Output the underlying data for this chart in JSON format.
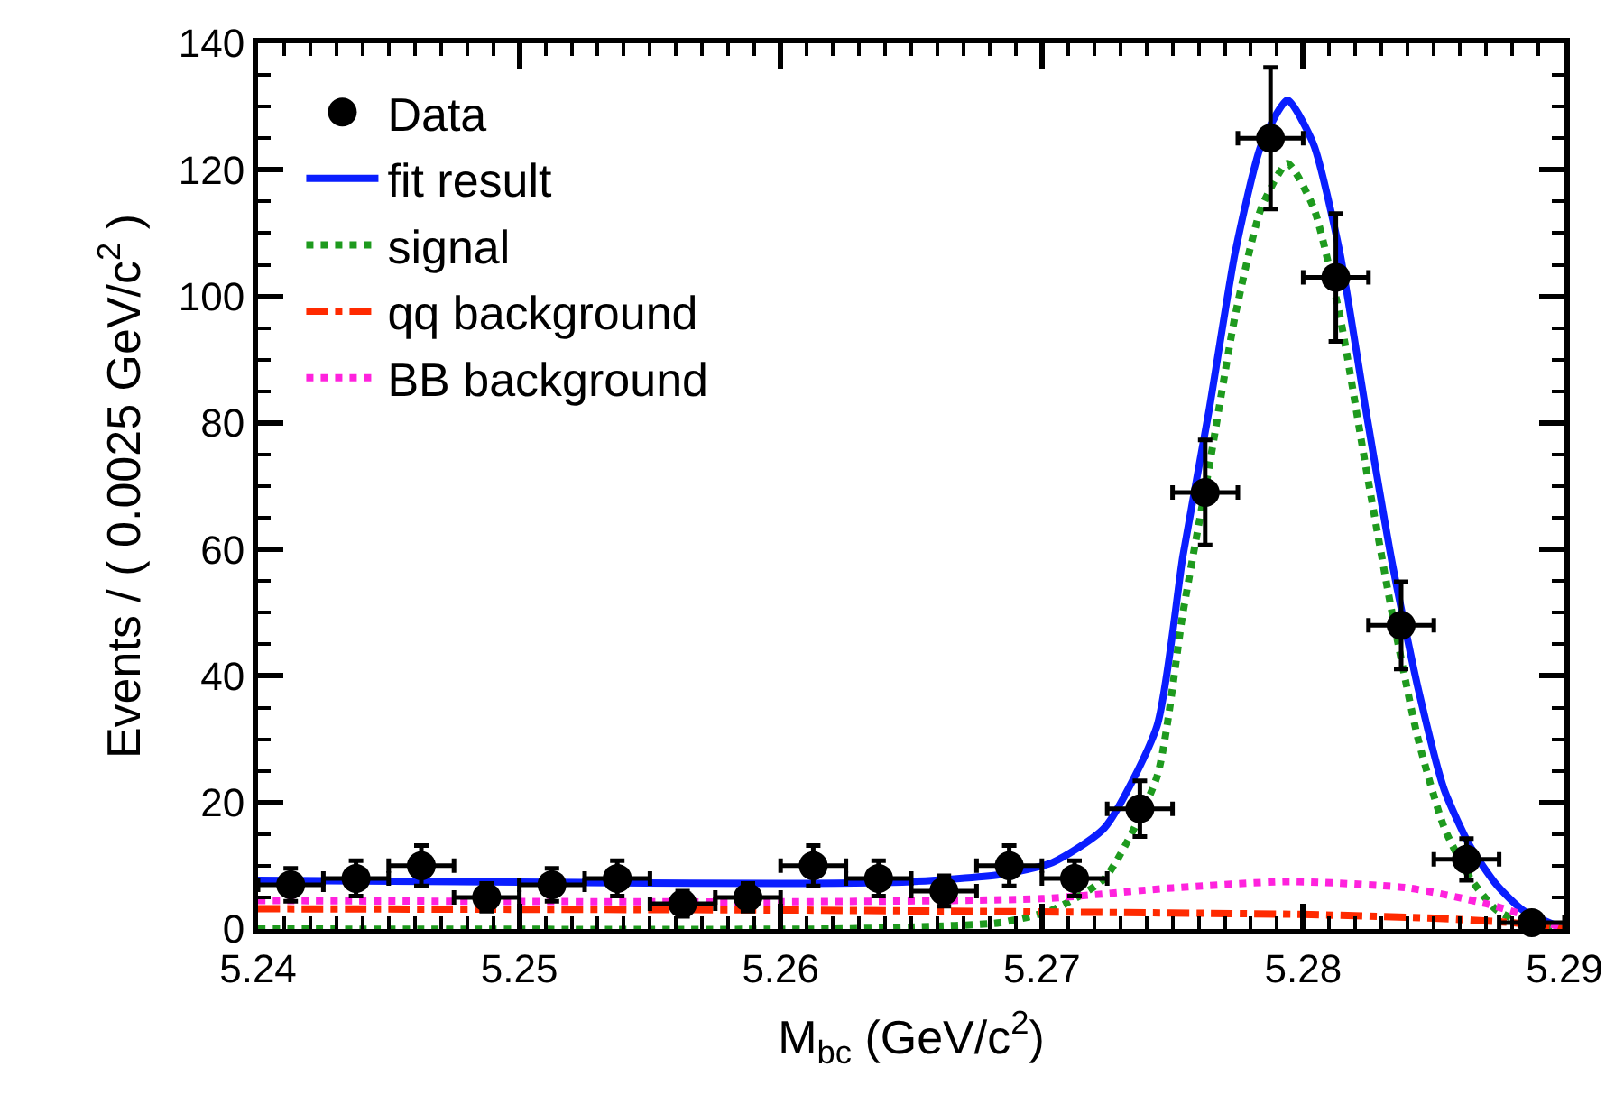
{
  "chart_data": {
    "type": "scatter",
    "xlabel": "M$_{bc}$ (GeV/c$^{2}$)",
    "ylabel": "Events / ( 0.0025 GeV/c$^{2}$ )",
    "xlim": [
      5.24,
      5.29
    ],
    "xticks": [
      5.24,
      5.25,
      5.26,
      5.27,
      5.28,
      5.29
    ],
    "ylim": [
      0,
      140
    ],
    "yticks": [
      0,
      20,
      40,
      60,
      80,
      100,
      120,
      140
    ],
    "legend": "top left",
    "series": [
      {
        "name": "Data",
        "marker": "circle",
        "color": "#000000",
        "x": [
          5.24125,
          5.24375,
          5.24625,
          5.24875,
          5.25125,
          5.25375,
          5.25625,
          5.25875,
          5.26125,
          5.26375,
          5.26625,
          5.26875,
          5.27125,
          5.27375,
          5.27625,
          5.27875,
          5.28125,
          5.28375,
          5.28625,
          5.28875
        ],
        "values": [
          7,
          8,
          10,
          5,
          7,
          8,
          4,
          5,
          10,
          8,
          6,
          10,
          8,
          19,
          69,
          125,
          103,
          48,
          11,
          1
        ],
        "errors": [
          2.6,
          2.8,
          3.2,
          2.2,
          2.6,
          2.8,
          2,
          2.2,
          3.2,
          2.8,
          2.4,
          3.2,
          2.8,
          4.4,
          8.3,
          11.2,
          10.1,
          6.9,
          3.3,
          null
        ],
        "xerrors": [
          0.00125,
          0.00125,
          0.00125,
          0.00125,
          0.00125,
          0.00125,
          0.00125,
          0.00125,
          0.00125,
          0.00125,
          0.00125,
          0.00125,
          0.00125,
          0.00125,
          0.00125,
          0.00125,
          0.00125,
          0.00125,
          0.00125,
          0.00125
        ]
      },
      {
        "name": "fit result",
        "type": "line",
        "line_style": "solid",
        "color": "#0a1eff",
        "x": [
          5.24,
          5.25,
          5.26,
          5.265,
          5.2684,
          5.2704,
          5.2724,
          5.2744,
          5.2754,
          5.2764,
          5.2774,
          5.2784,
          5.2794,
          5.2804,
          5.2814,
          5.2824,
          5.2834,
          5.2844,
          5.2854,
          5.2864,
          5.2874,
          5.2884,
          5.29
        ],
        "values": [
          7.7,
          7.4,
          7.2,
          7.5,
          8.6,
          10.5,
          16,
          32,
          59,
          82,
          107,
          124,
          131,
          124,
          107,
          82,
          58,
          38,
          22,
          13,
          7,
          3,
          0
        ]
      },
      {
        "name": "signal",
        "type": "line",
        "line_style": "dotted",
        "color": "#1e9a1e",
        "x": [
          5.24,
          5.262,
          5.265,
          5.2684,
          5.2704,
          5.2724,
          5.2744,
          5.2754,
          5.2764,
          5.2774,
          5.2784,
          5.2794,
          5.2804,
          5.2814,
          5.2824,
          5.2834,
          5.2844,
          5.2854,
          5.2864,
          5.2874,
          5.2884,
          5.29
        ],
        "values": [
          0,
          0,
          0.3,
          1,
          3,
          8,
          24,
          50,
          73,
          97,
          114,
          121,
          114,
          97,
          73,
          50,
          30,
          16,
          8,
          3,
          1,
          0
        ]
      },
      {
        "name": "qq background",
        "type": "line",
        "line_style": "dashdot",
        "color": "#ff2a00",
        "x": [
          5.24,
          5.26,
          5.27,
          5.28,
          5.285,
          5.288,
          5.29
        ],
        "values": [
          3.2,
          3,
          2.7,
          2.3,
          1.7,
          1,
          0
        ]
      },
      {
        "name": "BB background",
        "type": "line",
        "line_style": "dotted",
        "color": "#ff22dd",
        "x": [
          5.24,
          5.26,
          5.27,
          5.275,
          5.2795,
          5.284,
          5.287,
          5.289,
          5.29
        ],
        "values": [
          4.5,
          4.3,
          4.8,
          6.5,
          7.5,
          6.5,
          4,
          1.5,
          0
        ]
      }
    ]
  }
}
